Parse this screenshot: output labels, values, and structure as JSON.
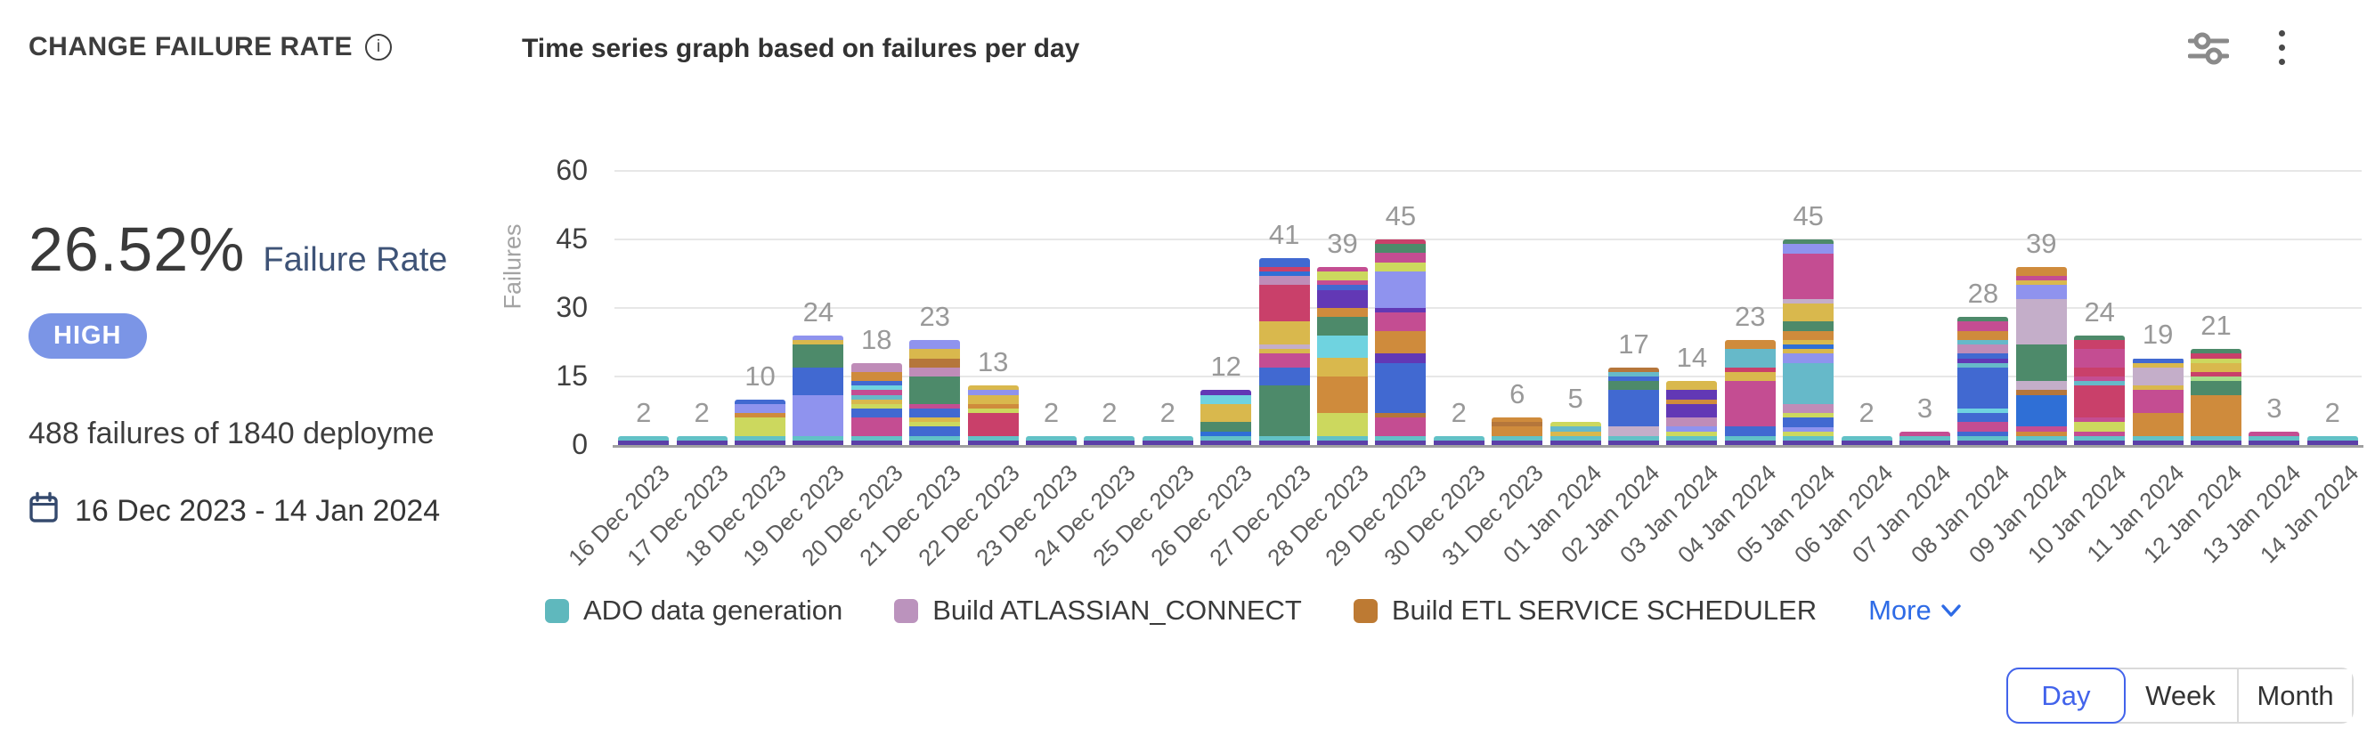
{
  "header": {
    "title": "CHANGE FAILURE RATE",
    "chart_title": "Time series graph based on failures per day"
  },
  "summary": {
    "rate_value": "26.52%",
    "rate_label": "Failure Rate",
    "severity_badge": {
      "label": "HIGH",
      "color": "#7b95e6"
    },
    "failures_text": "488 failures of 1840 deployme",
    "date_range": "16 Dec 2023 - 14 Jan 2024"
  },
  "chart_data": {
    "type": "bar",
    "stacked": true,
    "title": "Time series graph based on failures per day",
    "xlabel": "",
    "ylabel": "Failures",
    "ylim": [
      0,
      60
    ],
    "yticks": [
      0,
      15,
      30,
      45,
      60
    ],
    "grid": true,
    "categories": [
      "16 Dec 2023",
      "17 Dec 2023",
      "18 Dec 2023",
      "19 Dec 2023",
      "20 Dec 2023",
      "21 Dec 2023",
      "22 Dec 2023",
      "23 Dec 2023",
      "24 Dec 2023",
      "25 Dec 2023",
      "26 Dec 2023",
      "27 Dec 2023",
      "28 Dec 2023",
      "29 Dec 2023",
      "30 Dec 2023",
      "31 Dec 2023",
      "01 Jan 2024",
      "02 Jan 2024",
      "03 Jan 2024",
      "04 Jan 2024",
      "05 Jan 2024",
      "06 Jan 2024",
      "07 Jan 2024",
      "08 Jan 2024",
      "09 Jan 2024",
      "10 Jan 2024",
      "11 Jan 2024",
      "12 Jan 2024",
      "13 Jan 2024",
      "14 Jan 2024"
    ],
    "values": [
      2,
      2,
      10,
      24,
      18,
      23,
      13,
      2,
      2,
      2,
      12,
      41,
      39,
      45,
      2,
      6,
      5,
      17,
      14,
      23,
      45,
      2,
      3,
      28,
      39,
      24,
      19,
      21,
      3,
      2
    ],
    "total_failures": 488,
    "palette": [
      "#5b3fa8",
      "#62c1c7",
      "#d9b84d",
      "#cf8b3c",
      "#4169d1",
      "#4d8a6a",
      "#c44d92",
      "#ccd85e",
      "#8f93ee",
      "#bf8cb8",
      "#b5763b",
      "#66b9c9",
      "#a8dc8a",
      "#c4aec9",
      "#6fd3e0",
      "#2f6fd6",
      "#6238b5",
      "#c9406a"
    ],
    "legend": [
      {
        "label": "ADO data generation",
        "color": "#5fb8bd"
      },
      {
        "label": "Build ATLASSIAN_CONNECT",
        "color": "#bb93bd"
      },
      {
        "label": "Build ETL SERVICE SCHEDULER",
        "color": "#bd7a33"
      }
    ],
    "legend_position": "bottom",
    "legend_more_label": "More"
  },
  "controls": {
    "granularity": [
      {
        "label": "Day",
        "selected": true
      },
      {
        "label": "Week",
        "selected": false
      },
      {
        "label": "Month",
        "selected": false
      }
    ]
  }
}
